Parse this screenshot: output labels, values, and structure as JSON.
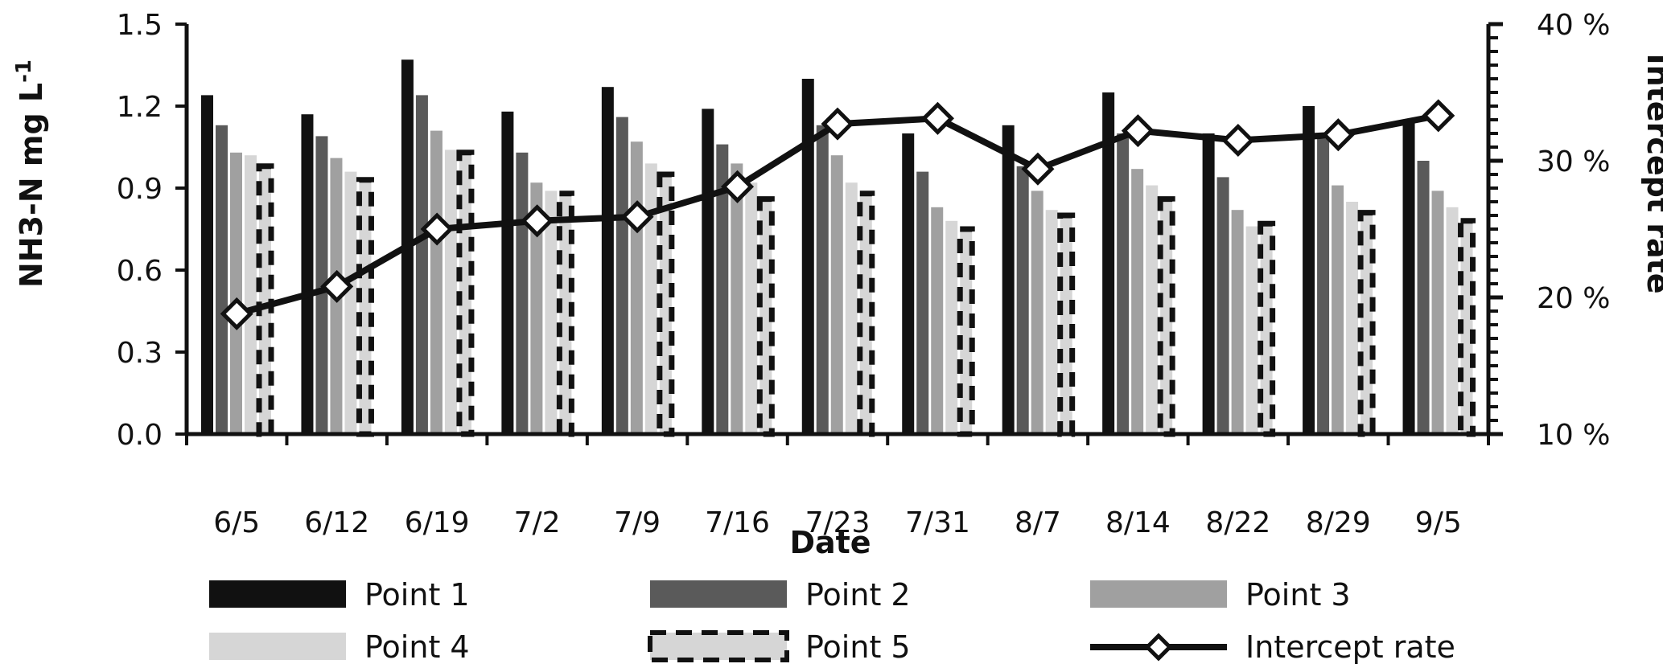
{
  "chart_data": {
    "type": "bar",
    "xlabel": "Date",
    "ylabel": "NH3-N  mg L",
    "ylabel_sup": "-1",
    "y2label": "Intercept rate",
    "categories": [
      "6/5",
      "6/12",
      "6/19",
      "7/2",
      "7/9",
      "7/16",
      "7/23",
      "7/31",
      "8/7",
      "8/14",
      "8/22",
      "8/29",
      "9/5"
    ],
    "ylim": [
      0,
      1.5
    ],
    "yticks": [
      "0.0",
      "0.3",
      "0.6",
      "0.9",
      "1.2",
      "1.5"
    ],
    "y2lim": [
      10,
      40
    ],
    "y2ticks": [
      "10 %",
      "20 %",
      "30 %",
      "40 %"
    ],
    "series": [
      {
        "name": "Point 1",
        "style": "solid",
        "color": "#111111",
        "values": [
          1.24,
          1.17,
          1.37,
          1.18,
          1.27,
          1.19,
          1.3,
          1.1,
          1.13,
          1.25,
          1.1,
          1.2,
          1.15
        ]
      },
      {
        "name": "Point 2",
        "style": "solid",
        "color": "#5a5a5a",
        "values": [
          1.13,
          1.09,
          1.24,
          1.03,
          1.16,
          1.06,
          1.13,
          0.96,
          0.98,
          1.1,
          0.94,
          1.08,
          1.0
        ]
      },
      {
        "name": "Point 3",
        "style": "solid",
        "color": "#a0a0a0",
        "values": [
          1.03,
          1.01,
          1.11,
          0.92,
          1.07,
          0.99,
          1.02,
          0.83,
          0.89,
          0.97,
          0.82,
          0.91,
          0.89
        ]
      },
      {
        "name": "Point 4",
        "style": "solid",
        "color": "#d6d6d6",
        "values": [
          1.02,
          0.96,
          1.04,
          0.89,
          0.99,
          0.92,
          0.92,
          0.78,
          0.82,
          0.91,
          0.76,
          0.85,
          0.83
        ]
      },
      {
        "name": "Point 5",
        "style": "dashed",
        "color": "#d6d6d6",
        "values": [
          0.98,
          0.93,
          1.03,
          0.88,
          0.95,
          0.86,
          0.88,
          0.75,
          0.8,
          0.86,
          0.77,
          0.81,
          0.78
        ]
      }
    ],
    "line": {
      "name": "Intercept rate",
      "color": "#111111",
      "values": [
        18.8,
        20.8,
        25.0,
        25.6,
        25.9,
        28.1,
        32.7,
        33.1,
        29.4,
        32.2,
        31.5,
        31.9,
        33.3
      ]
    },
    "legend_position": "bottom",
    "grid": false
  }
}
